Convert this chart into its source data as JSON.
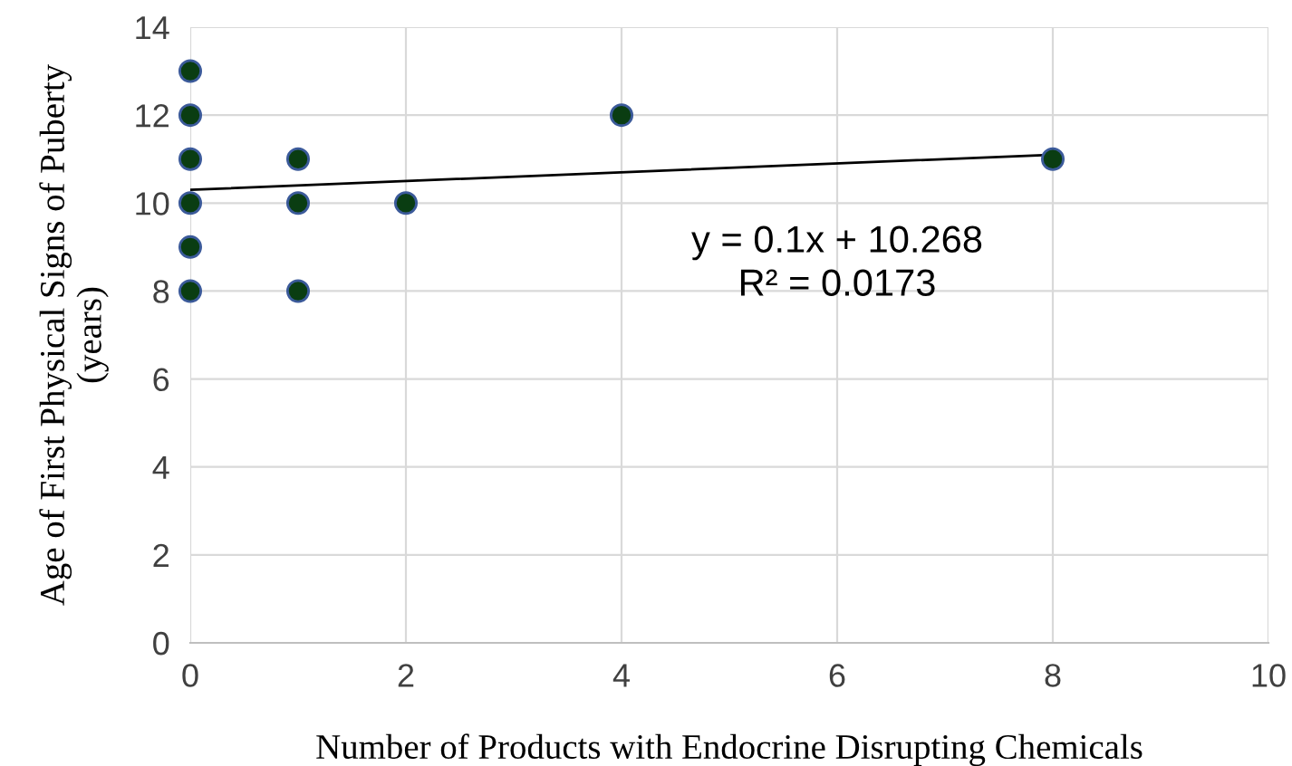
{
  "chart_data": {
    "type": "scatter",
    "xlabel": "Number of Products with Endocrine Disrupting Chemicals",
    "ylabel": "Age of First Physical Signs of Puberty\n(years)",
    "xlim": [
      0,
      10
    ],
    "xticks": [
      0,
      2,
      4,
      6,
      8,
      10
    ],
    "ylim": [
      0,
      14
    ],
    "yticks": [
      0,
      2,
      4,
      6,
      8,
      10,
      12,
      14
    ],
    "grid": true,
    "legend": false,
    "marker": "circle",
    "series": [
      {
        "color": "#0a3d12",
        "x": [
          0,
          0,
          0,
          0,
          0,
          0,
          1,
          1,
          1,
          2,
          4,
          8
        ],
        "values": [
          13,
          12,
          11,
          10,
          9,
          8,
          11,
          10,
          8,
          10,
          12,
          11
        ]
      },
      {
        "type": "line",
        "color": "#000000",
        "marker": "none",
        "line_style": "solid",
        "x": [
          0,
          8
        ],
        "values": [
          10.3,
          11.1
        ]
      }
    ],
    "annotations": [
      "y = 0.1x + 10.268\nR² = 0.0173"
    ]
  }
}
